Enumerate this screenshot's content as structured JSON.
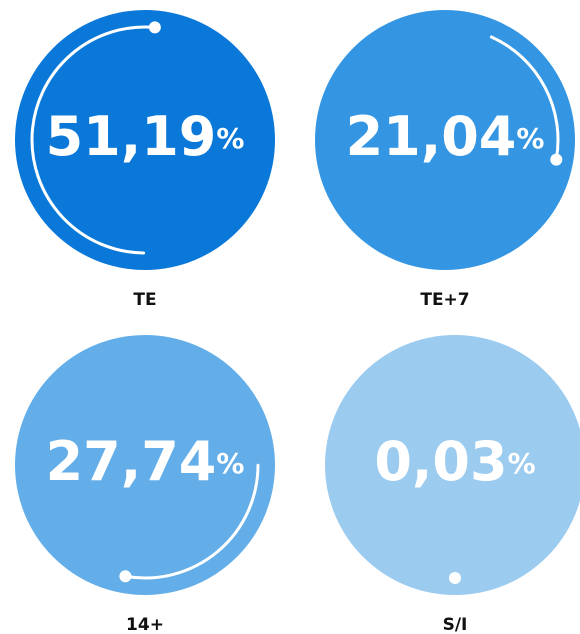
{
  "chart_data": {
    "type": "radial",
    "categories": [
      "TE",
      "TE+7",
      "14+",
      "S/I"
    ],
    "values": [
      51.19,
      21.04,
      27.74,
      0.03
    ],
    "value_labels": [
      "51,19",
      "21,04",
      "27,74",
      "0,03"
    ],
    "unit": "%",
    "colors": [
      "#0a78d8",
      "#3496e2",
      "#63aee8",
      "#9ccbf0"
    ]
  }
}
